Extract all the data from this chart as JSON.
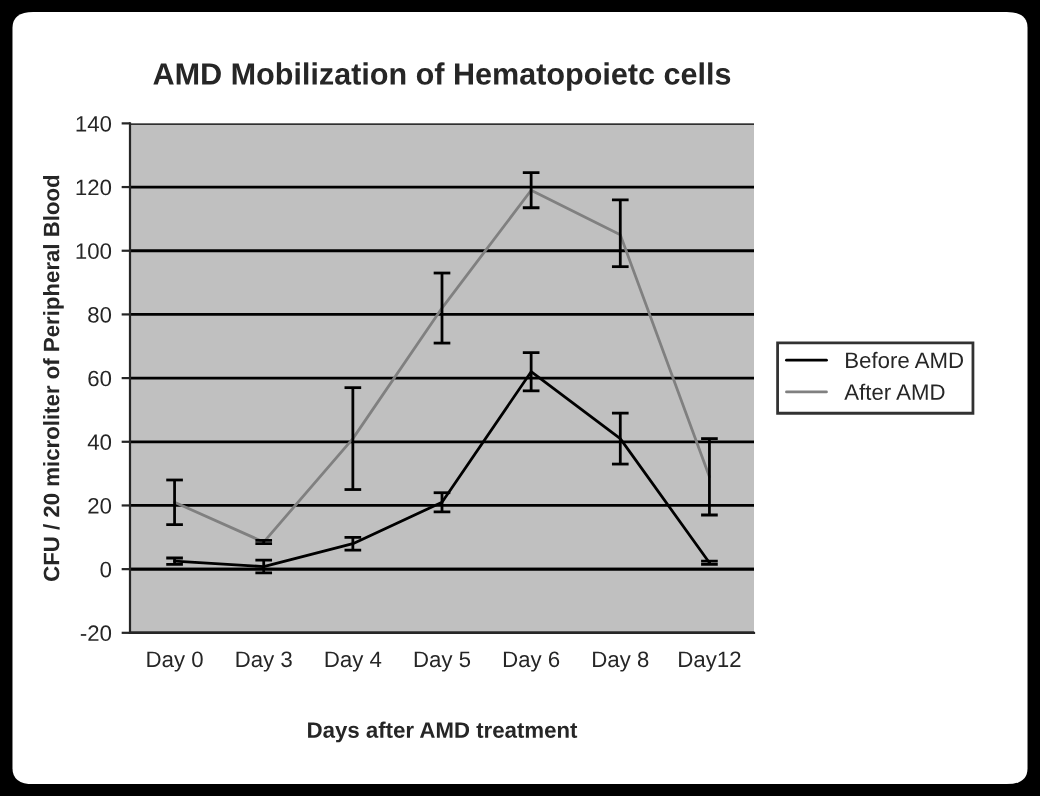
{
  "chart_data": {
    "type": "line",
    "title": "AMD Mobilization of Hematopoietc cells",
    "xlabel": "Days after AMD treatment",
    "ylabel": "CFU / 20 microliter of Peripheral Blood",
    "categories": [
      "Day 0",
      "Day 3",
      "Day 4",
      "Day 5",
      "Day 6",
      "Day 8",
      "Day12"
    ],
    "series": [
      {
        "name": "Before AMD",
        "color": "#000000",
        "values": [
          2.5,
          0.8,
          8,
          21,
          62,
          41,
          2
        ],
        "errors": [
          1,
          2,
          2,
          3,
          6,
          8,
          0.5
        ]
      },
      {
        "name": "After AMD",
        "color": "#808080",
        "values": [
          21,
          8.5,
          41,
          82,
          119,
          105,
          29
        ],
        "errors": [
          7,
          0.5,
          16,
          11,
          5.5,
          [
            95,
            116
          ],
          12
        ]
      }
    ],
    "ylim": [
      -20,
      140
    ],
    "yticks": [
      -20,
      0,
      20,
      40,
      60,
      80,
      100,
      120,
      140
    ],
    "grid": "y",
    "legend": "right",
    "marker": "none",
    "line_style": "solid"
  }
}
